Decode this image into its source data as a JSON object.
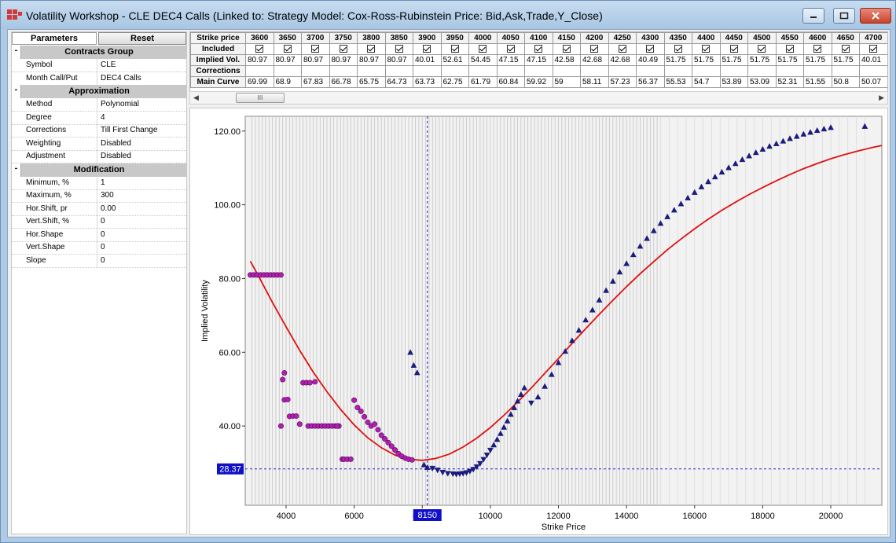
{
  "window": {
    "title": "Volatility Workshop - CLE DEC4 Calls (Linked to: Strategy Model: Cox-Ross-Rubinstein Price: Bid,Ask,Trade,Y_Close)"
  },
  "left_panel": {
    "tab_parameters": "Parameters",
    "reset_button": "Reset",
    "groups": [
      {
        "title": "Contracts Group",
        "toggle": "-",
        "rows": [
          {
            "name": "Symbol",
            "value": "CLE"
          },
          {
            "name": "Month Call/Put",
            "value": "DEC4 Calls"
          }
        ]
      },
      {
        "title": "Approximation",
        "toggle": "-",
        "rows": [
          {
            "name": "Method",
            "value": "Polynomial"
          },
          {
            "name": "Degree",
            "value": "4"
          },
          {
            "name": "Corrections",
            "value": "Till First Change"
          },
          {
            "name": "Weighting",
            "value": "Disabled"
          },
          {
            "name": "Adjustment",
            "value": "Disabled"
          }
        ]
      },
      {
        "title": "Modification",
        "toggle": "-",
        "rows": [
          {
            "name": "Minimum, %",
            "value": "1"
          },
          {
            "name": "Maximum, %",
            "value": "300"
          },
          {
            "name": "Hor.Shift, pr",
            "value": "0.00"
          },
          {
            "name": "Vert.Shift, %",
            "value": "0"
          },
          {
            "name": "Hor.Shape",
            "value": "0"
          },
          {
            "name": "Vert.Shape",
            "value": "0"
          },
          {
            "name": "Slope",
            "value": "0"
          }
        ]
      }
    ]
  },
  "grid": {
    "row_labels": [
      "Strike price",
      "Included",
      "Implied Vol.",
      "Corrections",
      "Main Curve"
    ],
    "strikes": [
      "3600",
      "3650",
      "3700",
      "3750",
      "3800",
      "3850",
      "3900",
      "3950",
      "4000",
      "4050",
      "4100",
      "4150",
      "4200",
      "4250",
      "4300",
      "4350",
      "4400",
      "4450",
      "4500",
      "4550",
      "4600",
      "4650",
      "4700"
    ],
    "implied_vol": [
      "80.97",
      "80.97",
      "80.97",
      "80.97",
      "80.97",
      "80.97",
      "40.01",
      "52.61",
      "54.45",
      "47.15",
      "47.15",
      "42.58",
      "42.68",
      "42.68",
      "40.49",
      "51.75",
      "51.75",
      "51.75",
      "51.75",
      "51.75",
      "51.75",
      "51.75",
      "40.01"
    ],
    "main_curve": [
      "69.99",
      "68.9",
      "67.83",
      "66.78",
      "65.75",
      "64.73",
      "63.73",
      "62.75",
      "61.79",
      "60.84",
      "59.92",
      "59",
      "58.11",
      "57.23",
      "56.37",
      "55.53",
      "54.7",
      "53.89",
      "53.09",
      "52.31",
      "51.55",
      "50.8",
      "50.07"
    ],
    "scrollbar_thumb": "III"
  },
  "chart_data": {
    "type": "scatter",
    "xlabel": "Strike Price",
    "ylabel": "Implied Volatility",
    "xlim": [
      2800,
      21500
    ],
    "ylim": [
      18.5,
      124
    ],
    "xticks": [
      4000,
      6000,
      8000,
      10000,
      12000,
      14000,
      16000,
      18000,
      20000
    ],
    "yticks": [
      40.0,
      60.0,
      80.0,
      100.0,
      120.0
    ],
    "ytick_labels": [
      "40.00",
      "60.00",
      "80.00",
      "100.00",
      "120.00"
    ],
    "crosshair": {
      "x": 8150,
      "y": 28.37,
      "x_label": "8150",
      "y_label": "28.37"
    },
    "grid": true,
    "colors": {
      "curve": "#e01010",
      "ask": "#1a1a8a",
      "bid": "#b020b0",
      "crosshair": "#2020c8"
    },
    "series": [
      {
        "name": "Main Curve",
        "kind": "line",
        "x": [
          2950,
          3200,
          3600,
          4000,
          4400,
          4800,
          5200,
          5600,
          6000,
          6400,
          6800,
          7200,
          7600,
          8000,
          8400,
          8800,
          9200,
          9600,
          10000,
          10400,
          10800,
          11200,
          11600,
          12000,
          12400,
          12800,
          13200,
          13600,
          14000,
          14400,
          14800,
          15200,
          15600,
          16000,
          16400,
          16800,
          17200,
          17600,
          18000,
          18400,
          18800,
          19200,
          19600,
          20000,
          20400,
          20800,
          21200,
          21500
        ],
        "y": [
          84.7,
          80.5,
          73.5,
          66.9,
          60.5,
          54.6,
          49.3,
          44.5,
          40.3,
          36.8,
          34.1,
          32.1,
          31.0,
          30.7,
          31.2,
          32.4,
          34.3,
          36.7,
          39.6,
          42.9,
          46.5,
          50.3,
          54.3,
          58.3,
          62.4,
          66.4,
          70.3,
          74.1,
          77.8,
          81.3,
          84.6,
          87.8,
          90.7,
          93.5,
          96.1,
          98.5,
          100.7,
          102.8,
          104.7,
          106.5,
          108.2,
          109.8,
          111.2,
          112.5,
          113.6,
          114.6,
          115.5,
          116.1
        ]
      },
      {
        "name": "Bid",
        "kind": "circle",
        "x": [
          2950,
          3050,
          3150,
          3250,
          3350,
          3450,
          3550,
          3650,
          3750,
          3850,
          3850,
          3900,
          3950,
          3950,
          4050,
          4100,
          4200,
          4300,
          4400,
          4500,
          4600,
          4700,
          4650,
          4750,
          4850,
          4950,
          5050,
          5150,
          5250,
          5350,
          5450,
          5550,
          5650,
          5700,
          5800,
          5900,
          5500,
          4850,
          6000,
          6100,
          6200,
          6300,
          6400,
          6500,
          6600,
          6700,
          6800,
          6900,
          7000,
          7100,
          7200,
          7300,
          7400,
          7500,
          7600,
          7700
        ],
        "y": [
          80.97,
          80.97,
          80.97,
          80.97,
          80.97,
          80.97,
          80.97,
          80.97,
          80.97,
          80.97,
          40.0,
          52.6,
          54.4,
          47.1,
          47.2,
          42.6,
          42.7,
          42.7,
          40.5,
          51.75,
          51.75,
          51.75,
          40.0,
          40.0,
          40.0,
          40.0,
          40.0,
          40.0,
          40.0,
          40.0,
          40.0,
          40.0,
          31.0,
          31.0,
          31.0,
          31.0,
          40.0,
          52.0,
          47.0,
          45.0,
          44.0,
          42.5,
          41.0,
          40.0,
          40.5,
          39.0,
          37.5,
          36.5,
          35.5,
          34.5,
          33.5,
          32.5,
          31.8,
          31.3,
          31.0,
          30.8
        ]
      },
      {
        "name": "Ask",
        "kind": "triangle",
        "x": [
          7650,
          7750,
          7850,
          8050,
          8150,
          8300,
          8450,
          8600,
          8750,
          8900,
          9000,
          9100,
          9200,
          9300,
          9400,
          9500,
          9600,
          9700,
          9800,
          9900,
          10000,
          10100,
          10200,
          10300,
          10400,
          10500,
          10600,
          10700,
          10800,
          10900,
          11000,
          11200,
          11400,
          11600,
          11800,
          12000,
          12200,
          12400,
          12600,
          12800,
          13000,
          13200,
          13400,
          13600,
          13800,
          14000,
          14200,
          14400,
          14600,
          14800,
          15000,
          15200,
          15400,
          15600,
          15800,
          16000,
          16200,
          16400,
          16600,
          16800,
          17000,
          17200,
          17400,
          17600,
          17800,
          18000,
          18200,
          18400,
          18600,
          18800,
          19000,
          19200,
          19400,
          19600,
          19800,
          20000,
          21000
        ],
        "y": [
          60.0,
          56.5,
          54.5,
          29.5,
          28.8,
          28.5,
          28.0,
          27.4,
          27.1,
          27.0,
          26.9,
          27.0,
          27.1,
          27.3,
          27.7,
          28.2,
          28.9,
          29.8,
          30.9,
          32.1,
          33.4,
          34.9,
          36.4,
          38.0,
          39.7,
          41.4,
          43.2,
          45.0,
          46.8,
          48.6,
          50.4,
          46.2,
          47.9,
          50.8,
          54.0,
          57.2,
          60.3,
          63.2,
          66.0,
          68.8,
          71.5,
          74.2,
          76.8,
          79.3,
          81.8,
          84.1,
          86.5,
          88.8,
          90.9,
          93.0,
          95.0,
          96.8,
          98.6,
          100.3,
          101.9,
          103.4,
          104.9,
          106.3,
          107.6,
          108.9,
          110.1,
          111.2,
          112.3,
          113.3,
          114.2,
          115.1,
          115.9,
          116.6,
          117.3,
          118.0,
          118.6,
          119.2,
          119.7,
          120.2,
          120.6,
          121.0,
          121.3
        ]
      }
    ]
  }
}
